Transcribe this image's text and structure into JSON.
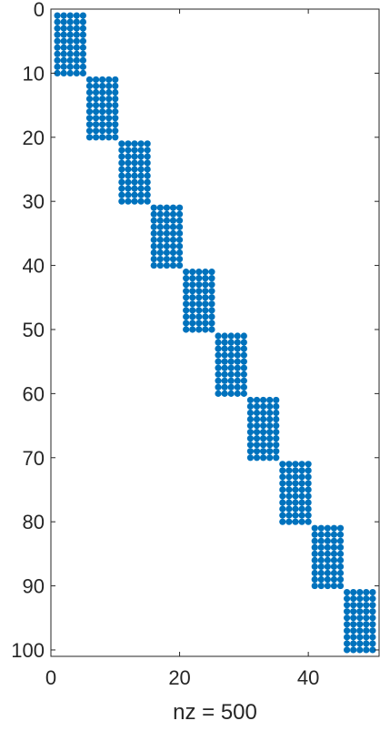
{
  "chart_data": {
    "type": "scatter",
    "subtype": "sparsity-pattern",
    "title": "",
    "xlabel": "nz = 500",
    "ylabel": "",
    "nrows": 100,
    "ncols": 50,
    "xlim": [
      0,
      51
    ],
    "ylim": [
      101,
      0
    ],
    "y_axis_direction": "reversed (top to bottom)",
    "xticks": [
      0,
      20,
      40
    ],
    "yticks": [
      0,
      10,
      20,
      30,
      40,
      50,
      60,
      70,
      80,
      90,
      100
    ],
    "marker_color": "#0072BD",
    "grid": false,
    "blocks": [
      {
        "rows": [
          1,
          10
        ],
        "cols": [
          1,
          5
        ]
      },
      {
        "rows": [
          11,
          20
        ],
        "cols": [
          6,
          10
        ]
      },
      {
        "rows": [
          21,
          30
        ],
        "cols": [
          11,
          15
        ]
      },
      {
        "rows": [
          31,
          40
        ],
        "cols": [
          16,
          20
        ]
      },
      {
        "rows": [
          41,
          50
        ],
        "cols": [
          21,
          25
        ]
      },
      {
        "rows": [
          51,
          60
        ],
        "cols": [
          26,
          30
        ]
      },
      {
        "rows": [
          61,
          70
        ],
        "cols": [
          31,
          35
        ]
      },
      {
        "rows": [
          71,
          80
        ],
        "cols": [
          36,
          40
        ]
      },
      {
        "rows": [
          81,
          90
        ],
        "cols": [
          41,
          45
        ]
      },
      {
        "rows": [
          91,
          100
        ],
        "cols": [
          46,
          50
        ]
      }
    ]
  }
}
